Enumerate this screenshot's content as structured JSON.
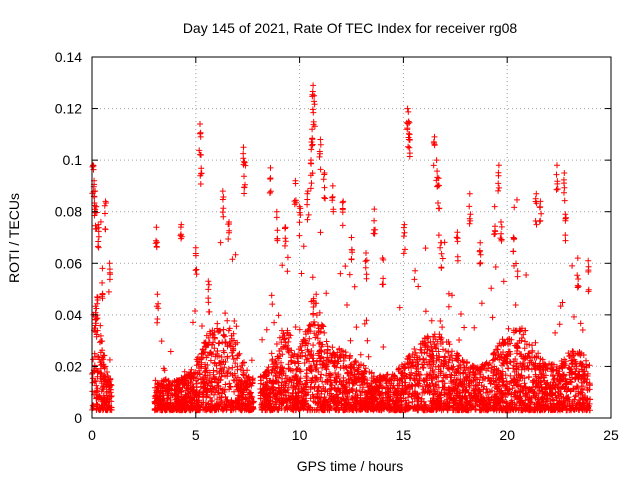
{
  "chart_data": {
    "type": "scatter",
    "title": "Day 145 of 2021, Rate Of TEC Index for receiver rg08",
    "xlabel": "GPS time / hours",
    "ylabel": "ROTI / TECUs",
    "xlim": [
      0,
      25
    ],
    "ylim": [
      0,
      0.14
    ],
    "xticks": [
      {
        "value": 0,
        "label": "0"
      },
      {
        "value": 5,
        "label": "5"
      },
      {
        "value": 10,
        "label": "10"
      },
      {
        "value": 15,
        "label": "15"
      },
      {
        "value": 20,
        "label": "20"
      },
      {
        "value": 25,
        "label": "25"
      }
    ],
    "yticks": [
      {
        "value": 0,
        "label": "0"
      },
      {
        "value": 0.02,
        "label": "0.02"
      },
      {
        "value": 0.04,
        "label": "0.04"
      },
      {
        "value": 0.06,
        "label": "0.06"
      },
      {
        "value": 0.08,
        "label": "0.08"
      },
      {
        "value": 0.1,
        "label": "0.1"
      },
      {
        "value": 0.12,
        "label": "0.12"
      },
      {
        "value": 0.14,
        "label": "0.14"
      }
    ],
    "grid": true,
    "marker": "+",
    "series_color": "#ff0000",
    "data_segments": [
      {
        "start": 0.0,
        "end": 0.95
      },
      {
        "start": 3.0,
        "end": 7.8
      },
      {
        "start": 8.1,
        "end": 24.0
      }
    ],
    "peaks": [
      {
        "x": 0.05,
        "y": 0.098
      },
      {
        "x": 0.1,
        "y": 0.092
      },
      {
        "x": 0.15,
        "y": 0.088
      },
      {
        "x": 0.2,
        "y": 0.082
      },
      {
        "x": 0.3,
        "y": 0.075
      },
      {
        "x": 0.5,
        "y": 0.058
      },
      {
        "x": 0.65,
        "y": 0.084
      },
      {
        "x": 0.85,
        "y": 0.06
      },
      {
        "x": 3.1,
        "y": 0.074
      },
      {
        "x": 3.15,
        "y": 0.048
      },
      {
        "x": 4.3,
        "y": 0.075
      },
      {
        "x": 5.0,
        "y": 0.066
      },
      {
        "x": 5.2,
        "y": 0.114
      },
      {
        "x": 5.25,
        "y": 0.102
      },
      {
        "x": 5.6,
        "y": 0.053
      },
      {
        "x": 6.3,
        "y": 0.088
      },
      {
        "x": 6.6,
        "y": 0.076
      },
      {
        "x": 7.3,
        "y": 0.105
      },
      {
        "x": 7.35,
        "y": 0.099
      },
      {
        "x": 8.6,
        "y": 0.097
      },
      {
        "x": 8.9,
        "y": 0.08
      },
      {
        "x": 9.3,
        "y": 0.074
      },
      {
        "x": 9.8,
        "y": 0.092
      },
      {
        "x": 10.0,
        "y": 0.082
      },
      {
        "x": 10.4,
        "y": 0.088
      },
      {
        "x": 10.65,
        "y": 0.129
      },
      {
        "x": 10.7,
        "y": 0.125
      },
      {
        "x": 10.6,
        "y": 0.112
      },
      {
        "x": 10.55,
        "y": 0.1
      },
      {
        "x": 11.0,
        "y": 0.108
      },
      {
        "x": 11.2,
        "y": 0.095
      },
      {
        "x": 11.6,
        "y": 0.09
      },
      {
        "x": 12.1,
        "y": 0.084
      },
      {
        "x": 12.5,
        "y": 0.07
      },
      {
        "x": 13.2,
        "y": 0.064
      },
      {
        "x": 13.6,
        "y": 0.081
      },
      {
        "x": 14.0,
        "y": 0.062
      },
      {
        "x": 15.05,
        "y": 0.075
      },
      {
        "x": 15.2,
        "y": 0.12
      },
      {
        "x": 15.25,
        "y": 0.115
      },
      {
        "x": 15.3,
        "y": 0.11
      },
      {
        "x": 16.5,
        "y": 0.109
      },
      {
        "x": 16.6,
        "y": 0.1
      },
      {
        "x": 16.7,
        "y": 0.093
      },
      {
        "x": 16.8,
        "y": 0.068
      },
      {
        "x": 17.6,
        "y": 0.072
      },
      {
        "x": 18.2,
        "y": 0.087
      },
      {
        "x": 18.7,
        "y": 0.068
      },
      {
        "x": 19.4,
        "y": 0.082
      },
      {
        "x": 19.6,
        "y": 0.098
      },
      {
        "x": 19.7,
        "y": 0.076
      },
      {
        "x": 20.3,
        "y": 0.07
      },
      {
        "x": 21.4,
        "y": 0.087
      },
      {
        "x": 21.6,
        "y": 0.084
      },
      {
        "x": 22.4,
        "y": 0.098
      },
      {
        "x": 22.75,
        "y": 0.095
      },
      {
        "x": 22.8,
        "y": 0.079
      },
      {
        "x": 23.4,
        "y": 0.062
      },
      {
        "x": 23.9,
        "y": 0.061
      }
    ]
  }
}
